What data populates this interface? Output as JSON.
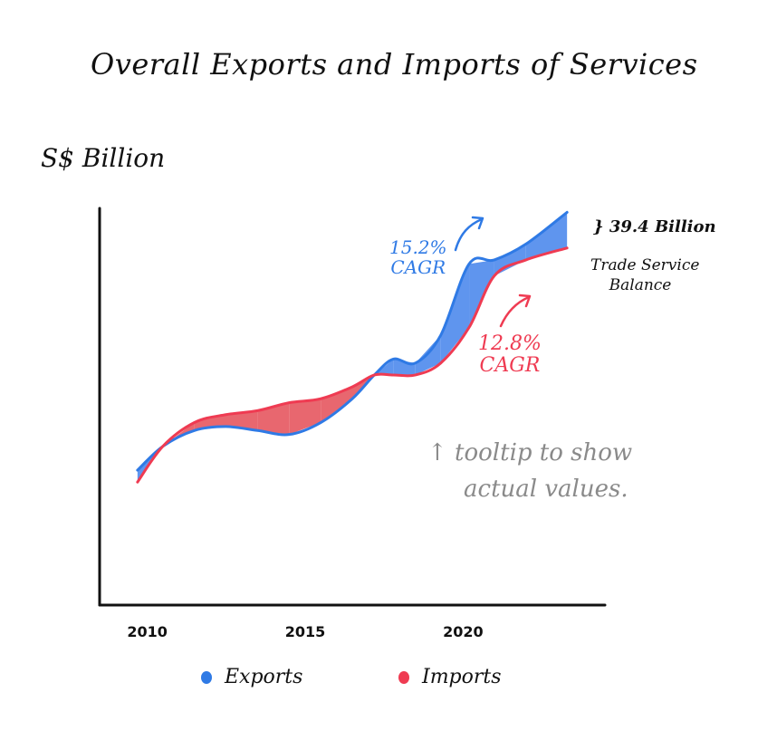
{
  "chart_data": {
    "type": "area",
    "title": "Overall Exports and Imports of Services",
    "ylabel": "S$ Billion",
    "xlabel": "",
    "x_ticks": [
      "2010",
      "2015",
      "2020"
    ],
    "xlim": [
      2008.5,
      2024.5
    ],
    "ylim": [
      0,
      100
    ],
    "grid": false,
    "legend_position": "bottom",
    "x": [
      2009.7,
      2010.5,
      2011.5,
      2012.5,
      2013.5,
      2014.5,
      2015.5,
      2016.5,
      2017.2,
      2017.8,
      2018.5,
      2019.3,
      2020.2,
      2021,
      2022,
      2023.3
    ],
    "series": [
      {
        "name": "Exports",
        "color": "#2f7ae5",
        "values": [
          34,
          40,
          44,
          45,
          44,
          43,
          46,
          52,
          58,
          62,
          61,
          68,
          86,
          87,
          91,
          99
        ],
        "annotation": "15.2% CAGR"
      },
      {
        "name": "Imports",
        "color": "#ef3b52",
        "values": null,
        "values_series": [
          31,
          40,
          46,
          48,
          49,
          51,
          52,
          55,
          58,
          58,
          58,
          61,
          70,
          83,
          87,
          90
        ],
        "annotation": "12.8% CAGR"
      }
    ],
    "annotations": {
      "balance_value": "} 39.4 Billion",
      "balance_label_line1": "Trade Service",
      "balance_label_line2": "Balance",
      "tooltip_line1": "↑ tooltip to show",
      "tooltip_line2": "actual values.",
      "exports_cagr_line1": "15.2%",
      "exports_cagr_line2": "CAGR",
      "imports_cagr_line1": "12.8%",
      "imports_cagr_line2": "CAGR"
    }
  }
}
